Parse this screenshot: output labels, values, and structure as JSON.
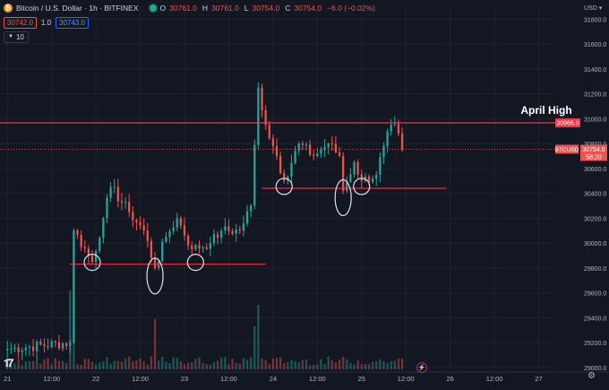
{
  "header": {
    "symbol": "Bitcoin / U.S. Dollar · 1h · BITFINEX",
    "o_label": "O",
    "o_value": "30761.0",
    "h_label": "H",
    "h_value": "30761.0",
    "l_label": "L",
    "l_value": "30754.0",
    "c_label": "C",
    "c_value": "30754.0",
    "change": "−6.0 (−0.02%)",
    "sell_price": "30742.0",
    "spread": "1.0",
    "buy_price": "30743.0",
    "indicator_value": "10",
    "coin_icon": "bitcoin-icon",
    "status_icon": "market-open-dot-icon"
  },
  "chart_data": {
    "type": "candlestick",
    "currency": "USD",
    "y_ticks": [
      "31800.0",
      "31600.0",
      "31400.0",
      "31200.0",
      "31000.0",
      "30800.0",
      "30600.0",
      "30400.0",
      "30200.0",
      "30000.0",
      "29800.0",
      "29600.0",
      "29400.0",
      "29200.0",
      "29000.0"
    ],
    "x_ticks": [
      {
        "label": "21",
        "t": 0
      },
      {
        "label": "12:00",
        "t": 12
      },
      {
        "label": "22",
        "t": 24
      },
      {
        "label": "12:00",
        "t": 36
      },
      {
        "label": "23",
        "t": 48
      },
      {
        "label": "12:00",
        "t": 60
      },
      {
        "label": "24",
        "t": 72
      },
      {
        "label": "12:00",
        "t": 84
      },
      {
        "label": "25",
        "t": 96
      },
      {
        "label": "12:00",
        "t": 108
      },
      {
        "label": "26",
        "t": 120
      },
      {
        "label": "12:00",
        "t": 132
      },
      {
        "label": "27",
        "t": 144
      }
    ],
    "ylim": [
      28985,
      31910
    ],
    "xlim": [
      -2,
      148
    ],
    "last_price_label": "30754.0",
    "last_price_symbol": "BTCUSD",
    "countdown": "58:20",
    "annotation": {
      "text": "April High",
      "value": 30966.0,
      "value_label": "30966.0"
    },
    "support_lines": [
      {
        "value": 29830,
        "t_start": 17,
        "t_end": 70
      },
      {
        "value": 30440,
        "t_start": 69,
        "t_end": 119
      }
    ],
    "circled_lows": [
      {
        "t": 23,
        "value": 29845
      },
      {
        "t": 40,
        "value": 29735
      },
      {
        "t": 51,
        "value": 29845
      },
      {
        "t": 75,
        "value": 30455
      },
      {
        "t": 91,
        "value": 30365
      },
      {
        "t": 96,
        "value": 30455
      }
    ],
    "up_color": "#26a69a",
    "down_color": "#ef5350",
    "annotation_color": "#f23645",
    "key_points": [
      {
        "t": 0,
        "v": 29150
      },
      {
        "t": 17,
        "v": 29200
      },
      {
        "t": 18,
        "v": 30100
      },
      {
        "t": 23,
        "v": 29850
      },
      {
        "t": 26,
        "v": 30200
      },
      {
        "t": 28,
        "v": 30450
      },
      {
        "t": 33,
        "v": 30250
      },
      {
        "t": 37,
        "v": 30100
      },
      {
        "t": 40,
        "v": 29800
      },
      {
        "t": 43,
        "v": 30050
      },
      {
        "t": 46,
        "v": 30200
      },
      {
        "t": 50,
        "v": 29950
      },
      {
        "t": 55,
        "v": 30000
      },
      {
        "t": 58,
        "v": 30100
      },
      {
        "t": 63,
        "v": 30100
      },
      {
        "t": 66,
        "v": 30300
      },
      {
        "t": 68,
        "v": 31250
      },
      {
        "t": 70,
        "v": 30950
      },
      {
        "t": 73,
        "v": 30700
      },
      {
        "t": 75,
        "v": 30500
      },
      {
        "t": 79,
        "v": 30800
      },
      {
        "t": 83,
        "v": 30700
      },
      {
        "t": 87,
        "v": 30800
      },
      {
        "t": 90,
        "v": 30700
      },
      {
        "t": 91,
        "v": 30420
      },
      {
        "t": 94,
        "v": 30650
      },
      {
        "t": 96,
        "v": 30500
      },
      {
        "t": 100,
        "v": 30550
      },
      {
        "t": 102,
        "v": 30780
      },
      {
        "t": 104,
        "v": 30950
      },
      {
        "t": 106,
        "v": 30880
      },
      {
        "t": 107,
        "v": 30754
      }
    ],
    "volume_spikes": [
      {
        "t": 17,
        "rel": 0.55
      },
      {
        "t": 18,
        "rel": 0.7
      },
      {
        "t": 40,
        "rel": 0.35
      },
      {
        "t": 68,
        "rel": 0.45
      },
      {
        "t": 67,
        "rel": 0.3
      }
    ]
  },
  "icons": {
    "logo": "tradingview-logo-icon",
    "alert": "lightning-icon",
    "settings": "gear-icon"
  }
}
